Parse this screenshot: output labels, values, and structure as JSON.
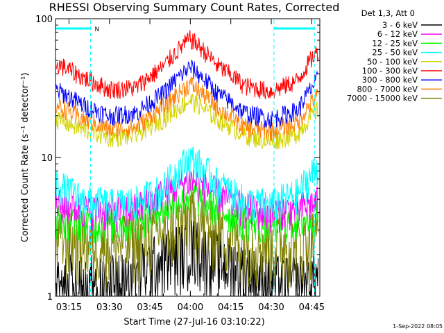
{
  "chart_data": {
    "type": "line",
    "title": "RHESSI Observing Summary Count Rates, Corrected",
    "xlabel": "Start Time (27-Jul-16 03:10:22)",
    "ylabel": "Corrected Count Rate (s⁻¹ detector⁻¹)",
    "yscale": "log",
    "ylim": [
      1,
      100
    ],
    "xlim": [
      "03:10",
      "04:48"
    ],
    "x_ticks": [
      "03:15",
      "03:30",
      "03:45",
      "04:00",
      "04:15",
      "04:30",
      "04:45"
    ],
    "y_ticks": [
      "1",
      "10",
      "100"
    ],
    "grid": false,
    "legend_title": "Det 1,3, Att 0",
    "legend_position": "right",
    "series": [
      {
        "name": "3 - 6 keV",
        "color": "#000000",
        "x": [
          "03:10",
          "03:20",
          "03:30",
          "03:40",
          "03:50",
          "04:00",
          "04:10",
          "04:20",
          "04:30",
          "04:40",
          "04:47"
        ],
        "values": [
          1.3,
          1.3,
          1.3,
          1.5,
          1.9,
          2.4,
          1.9,
          1.5,
          1.3,
          1.3,
          1.4
        ]
      },
      {
        "name": "6 - 12 keV",
        "color": "#ff00ff",
        "x": [
          "03:10",
          "03:20",
          "03:30",
          "03:40",
          "03:50",
          "04:00",
          "04:10",
          "04:20",
          "04:30",
          "04:40",
          "04:47"
        ],
        "values": [
          4.6,
          4.3,
          4.0,
          4.3,
          5.5,
          7.0,
          5.5,
          4.3,
          4.0,
          4.3,
          4.8
        ]
      },
      {
        "name": "12 - 25 keV",
        "color": "#00ff00",
        "x": [
          "03:10",
          "03:20",
          "03:30",
          "03:40",
          "03:50",
          "04:00",
          "04:10",
          "04:20",
          "04:30",
          "04:40",
          "04:47"
        ],
        "values": [
          3.6,
          3.4,
          3.3,
          3.5,
          4.3,
          5.5,
          4.3,
          3.5,
          3.3,
          3.5,
          3.8
        ]
      },
      {
        "name": "25 - 50 keV",
        "color": "#00ffff",
        "x": [
          "03:10",
          "03:20",
          "03:30",
          "03:40",
          "03:50",
          "04:00",
          "04:10",
          "04:20",
          "04:30",
          "04:40",
          "04:47"
        ],
        "values": [
          6.5,
          5.0,
          4.6,
          4.8,
          6.0,
          10.0,
          6.5,
          4.8,
          4.6,
          5.5,
          8.5
        ]
      },
      {
        "name": "50 - 100 keV",
        "color": "#d4d400",
        "x": [
          "03:10",
          "03:20",
          "03:30",
          "03:40",
          "03:50",
          "04:00",
          "04:10",
          "04:20",
          "04:30",
          "04:40",
          "04:47"
        ],
        "values": [
          19,
          16,
          14,
          14.5,
          19,
          26,
          19,
          14.5,
          13,
          15,
          22
        ]
      },
      {
        "name": "100 - 300 keV",
        "color": "#ff0000",
        "x": [
          "03:10",
          "03:20",
          "03:30",
          "03:40",
          "03:50",
          "04:00",
          "04:10",
          "04:20",
          "04:30",
          "04:40",
          "04:47"
        ],
        "values": [
          48,
          38,
          31,
          32,
          45,
          72,
          46,
          33,
          30,
          36,
          58
        ]
      },
      {
        "name": "300 - 800 keV",
        "color": "#0000ff",
        "x": [
          "03:10",
          "03:20",
          "03:30",
          "03:40",
          "03:50",
          "04:00",
          "04:10",
          "04:20",
          "04:30",
          "04:40",
          "04:47"
        ],
        "values": [
          31,
          24,
          20,
          21,
          29,
          45,
          29,
          21,
          19,
          22,
          36
        ]
      },
      {
        "name": "800 - 7000 keV",
        "color": "#ff8000",
        "x": [
          "03:10",
          "03:20",
          "03:30",
          "03:40",
          "03:50",
          "04:00",
          "04:10",
          "04:20",
          "04:30",
          "04:40",
          "04:47"
        ],
        "values": [
          24,
          19,
          16,
          16.5,
          23,
          34,
          23,
          16.5,
          15.5,
          18,
          28
        ]
      },
      {
        "name": "7000 - 15000 keV",
        "color": "#808000",
        "x": [
          "03:10",
          "03:20",
          "03:30",
          "03:40",
          "03:50",
          "04:00",
          "04:10",
          "04:20",
          "04:30",
          "04:40",
          "04:47"
        ],
        "values": [
          2.7,
          2.5,
          2.4,
          2.5,
          3.0,
          3.8,
          3.0,
          2.5,
          2.4,
          2.5,
          2.8
        ]
      }
    ],
    "annotations": [
      {
        "type": "flag",
        "label": "N",
        "from": "03:10",
        "to": "03:23",
        "color": "#00ffff"
      },
      {
        "type": "flag",
        "label": "",
        "from": "04:31",
        "to": "04:46",
        "color": "#00ffff"
      }
    ]
  },
  "footer": {
    "timestamp": "1-Sep-2022 08:05"
  }
}
